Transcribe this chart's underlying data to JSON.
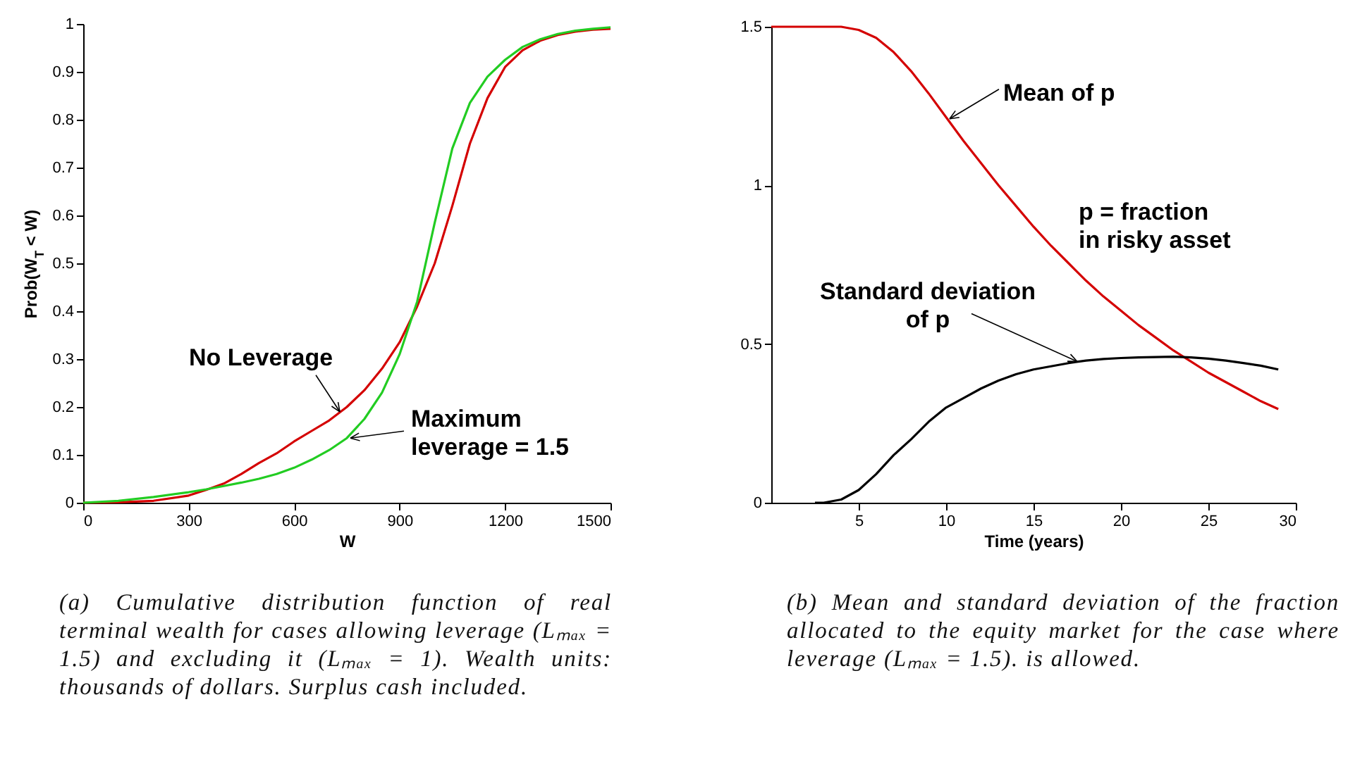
{
  "chart_data": [
    {
      "type": "line",
      "xlabel": "W",
      "ylabel": "Prob(W$_{T}$ < W)",
      "xlim": [
        0,
        1500
      ],
      "ylim": [
        0,
        1
      ],
      "xticks": [
        0,
        300,
        600,
        900,
        1200,
        1500
      ],
      "yticks": [
        0,
        0.1,
        0.2,
        0.3,
        0.4,
        0.5,
        0.6,
        0.7,
        0.8,
        0.9,
        1
      ],
      "grid": false,
      "legend": false,
      "marker": "none",
      "line_style": "solid",
      "x": [
        0,
        100,
        200,
        300,
        350,
        400,
        450,
        500,
        550,
        600,
        650,
        700,
        750,
        800,
        850,
        900,
        950,
        1000,
        1050,
        1100,
        1150,
        1200,
        1250,
        1300,
        1350,
        1400,
        1450,
        1500
      ],
      "series": [
        {
          "color": "#d40000",
          "values": [
            0,
            0.001,
            0.004,
            0.015,
            0.027,
            0.04,
            0.06,
            0.083,
            0.103,
            0.128,
            0.15,
            0.172,
            0.2,
            0.235,
            0.28,
            0.335,
            0.41,
            0.5,
            0.62,
            0.75,
            0.845,
            0.91,
            0.945,
            0.965,
            0.977,
            0.984,
            0.988,
            0.99
          ]
        },
        {
          "color": "#22cc22",
          "values": [
            0,
            0.004,
            0.012,
            0.022,
            0.028,
            0.035,
            0.042,
            0.05,
            0.06,
            0.073,
            0.09,
            0.11,
            0.135,
            0.175,
            0.23,
            0.31,
            0.42,
            0.585,
            0.74,
            0.835,
            0.89,
            0.925,
            0.952,
            0.968,
            0.979,
            0.986,
            0.99,
            0.993
          ]
        }
      ],
      "annotations": [
        {
          "text": "No Leverage",
          "x": 730,
          "y": 0.19
        },
        {
          "text": "Maximum\nleverage = 1.5",
          "x": 760,
          "y": 0.135
        },
        "(a) Cumulative distribution function of real terminal wealth for cases allowing leverage (Lₘₐₓ = 1.5) and excluding it (Lₘₐₓ = 1). Wealth units: thousands of dollars. Surplus cash included."
      ]
    },
    {
      "type": "line",
      "xlabel": "Time (years)",
      "xlim": [
        0,
        30
      ],
      "ylim": [
        0,
        1.5
      ],
      "xticks": [
        5,
        10,
        15,
        20,
        25,
        30
      ],
      "yticks": [
        0,
        0.5,
        1,
        1.5
      ],
      "grid": false,
      "legend": false,
      "marker": "none",
      "line_style": "solid",
      "series": [
        {
          "color": "#d40000",
          "x": [
            0,
            1,
            2,
            3,
            4,
            5,
            6,
            7,
            8,
            9,
            10,
            11,
            12,
            13,
            14,
            15,
            16,
            17,
            18,
            19,
            20,
            21,
            22,
            23,
            24,
            25,
            26,
            27,
            28,
            29
          ],
          "values": [
            1.5,
            1.5,
            1.5,
            1.5,
            1.5,
            1.49,
            1.465,
            1.42,
            1.36,
            1.29,
            1.215,
            1.14,
            1.07,
            1.0,
            0.935,
            0.87,
            0.81,
            0.755,
            0.7,
            0.65,
            0.605,
            0.56,
            0.52,
            0.48,
            0.445,
            0.41,
            0.38,
            0.35,
            0.32,
            0.295
          ]
        },
        {
          "color": "#000000",
          "x": [
            2.5,
            3,
            4,
            5,
            6,
            7,
            8,
            9,
            10,
            11,
            12,
            13,
            14,
            15,
            16,
            17,
            18,
            19,
            20,
            21,
            22,
            23,
            24,
            25,
            26,
            27,
            28,
            29
          ],
          "values": [
            0,
            0,
            0.01,
            0.04,
            0.09,
            0.15,
            0.2,
            0.255,
            0.3,
            0.33,
            0.36,
            0.385,
            0.405,
            0.42,
            0.43,
            0.44,
            0.448,
            0.453,
            0.456,
            0.458,
            0.459,
            0.46,
            0.458,
            0.454,
            0.448,
            0.44,
            0.432,
            0.42
          ]
        }
      ],
      "annotations": [
        {
          "text": "Mean of p",
          "x": 10.2,
          "y": 1.21
        },
        {
          "text": "Standard deviation\nof p",
          "x": 17.5,
          "y": 0.445
        },
        "p = fraction\nin risky asset",
        "(b) Mean and standard deviation of the fraction allocated to the equity market for the case where leverage (Lₘₐₓ = 1.5). is allowed."
      ]
    }
  ]
}
